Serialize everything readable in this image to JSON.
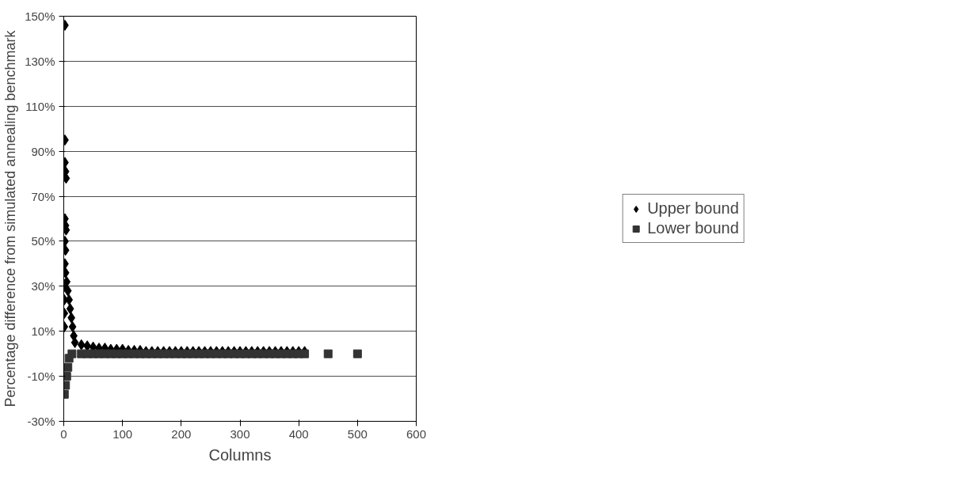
{
  "chart_data": {
    "type": "scatter",
    "xlabel": "Columns",
    "ylabel": "Percentage difference from simulated annealing benchmark",
    "xlim": [
      0,
      600
    ],
    "xticks": [
      0,
      100,
      200,
      300,
      400,
      500,
      600
    ],
    "ylim": [
      -30,
      150
    ],
    "yticks": [
      {
        "value": -30,
        "label": "-30%"
      },
      {
        "value": -10,
        "label": "-10%"
      },
      {
        "value": 10,
        "label": "10%"
      },
      {
        "value": 30,
        "label": "30%"
      },
      {
        "value": 50,
        "label": "50%"
      },
      {
        "value": 70,
        "label": "70%"
      },
      {
        "value": 90,
        "label": "90%"
      },
      {
        "value": 110,
        "label": "110%"
      },
      {
        "value": 130,
        "label": "130%"
      },
      {
        "value": 150,
        "label": "150%"
      }
    ],
    "grid": "y",
    "legend": "right",
    "series": [
      {
        "name": "Upper bound",
        "color": "#000000",
        "marker": "diamond",
        "x": [
          2,
          2,
          2,
          3,
          4,
          2,
          3,
          4,
          2,
          3,
          2,
          3,
          5,
          7,
          9,
          11,
          13,
          15,
          17,
          19,
          1,
          1,
          1,
          1,
          30,
          40,
          50,
          60,
          70,
          80,
          90,
          100,
          110,
          120,
          130,
          140,
          150,
          160,
          170,
          180,
          190,
          200,
          210,
          220,
          230,
          240,
          250,
          260,
          270,
          280,
          290,
          300,
          310,
          320,
          330,
          340,
          350,
          360,
          370,
          380,
          390,
          400,
          410
        ],
        "values": [
          146,
          95,
          85,
          81,
          78,
          60,
          57,
          55,
          50,
          46,
          40,
          36,
          32,
          28,
          24,
          20,
          16,
          12,
          8,
          5,
          30,
          24,
          18,
          12,
          4,
          3.5,
          3,
          2.5,
          2.5,
          2,
          2,
          2,
          1.5,
          1.5,
          1.5,
          1,
          1,
          1,
          1,
          1,
          1,
          1,
          1,
          1,
          1,
          1,
          1,
          1,
          1,
          1,
          1,
          1,
          1,
          1,
          1,
          1,
          1,
          1,
          1,
          1,
          1,
          1,
          1
        ]
      },
      {
        "name": "Lower bound",
        "color": "#333333",
        "marker": "square",
        "x": [
          1,
          3,
          5,
          7,
          9,
          14,
          30,
          40,
          50,
          60,
          70,
          80,
          90,
          100,
          110,
          120,
          130,
          140,
          150,
          160,
          170,
          180,
          190,
          200,
          210,
          220,
          230,
          240,
          250,
          260,
          270,
          280,
          290,
          300,
          310,
          320,
          330,
          340,
          350,
          360,
          370,
          380,
          390,
          400,
          410,
          450,
          500
        ],
        "values": [
          -18,
          -14,
          -10,
          -6,
          -2,
          0,
          0,
          0,
          0,
          0,
          0,
          0,
          0,
          0,
          0,
          0,
          0,
          0,
          0,
          0,
          0,
          0,
          0,
          0,
          0,
          0,
          0,
          0,
          0,
          0,
          0,
          0,
          0,
          0,
          0,
          0,
          0,
          0,
          0,
          0,
          0,
          0,
          0,
          0,
          0,
          0,
          0
        ]
      }
    ]
  }
}
